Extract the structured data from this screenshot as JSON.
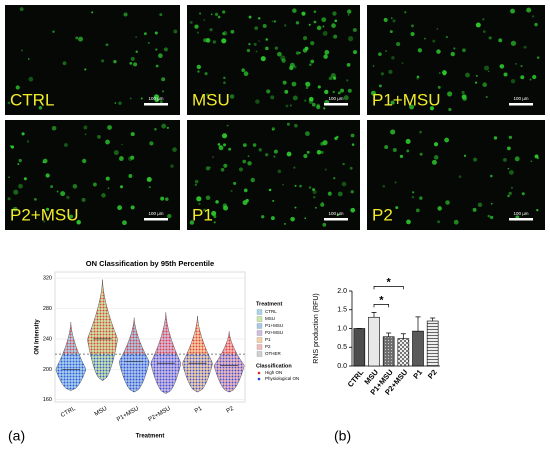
{
  "images": [
    {
      "label": "CTRL",
      "scale_bar": "100 µm"
    },
    {
      "label": "MSU",
      "scale_bar": "100 µm"
    },
    {
      "label": "P1+MSU",
      "scale_bar": "100 µm"
    },
    {
      "label": "P2+MSU",
      "scale_bar": "100 µm"
    },
    {
      "label": "P1",
      "scale_bar": "100 µm"
    },
    {
      "label": "P2",
      "scale_bar": "100 µm"
    }
  ],
  "panel_labels": [
    "(a)",
    "(b)"
  ],
  "chart_data": [
    {
      "type": "violin",
      "title": "ON Classification by 95th Percentile",
      "x_label": "Treatment",
      "y_label": "ON Intensity",
      "categories": [
        "CTRL",
        "MSU",
        "P1+MSU",
        "P2+MSU",
        "P1",
        "P2"
      ],
      "min": [
        172,
        185,
        170,
        168,
        170,
        170
      ],
      "median": [
        200,
        240,
        210,
        208,
        208,
        205
      ],
      "max": [
        262,
        318,
        268,
        275,
        270,
        250
      ],
      "colors": [
        "#a8d4ec",
        "#c9e8a8",
        "#a9c8e8",
        "#d2bde0",
        "#f6d2a6",
        "#f4bcbc"
      ],
      "threshold": 220,
      "ylim": [
        157,
        328
      ],
      "yticks": [
        160,
        200,
        240,
        280,
        320
      ],
      "grid": true,
      "legend": {
        "title": "Treatment",
        "entries": [
          "CTRL",
          "MSU",
          "P1+MSU",
          "P2+MSU",
          "P1",
          "P2",
          "OTHER"
        ],
        "colors": [
          "#a8d4ec",
          "#c9e8a8",
          "#a9c8e8",
          "#d2bde0",
          "#f6d2a6",
          "#f4bcbc",
          "#d0d0d0"
        ]
      },
      "classification": {
        "title": "Classification",
        "entries": [
          "High ON",
          "Physiological ON"
        ],
        "colors": [
          "#e0282c",
          "#2340d8"
        ]
      }
    },
    {
      "type": "bar",
      "y_label": "RNS production (RFU)",
      "categories": [
        "CTRL",
        "MSU",
        "P1+MSU",
        "P2+MSU",
        "P1",
        "P2"
      ],
      "values": [
        1.0,
        1.3,
        0.78,
        0.73,
        0.93,
        1.2
      ],
      "errors": [
        0,
        0.13,
        0.1,
        0.13,
        0.38,
        0.08
      ],
      "colors": [
        "#4d4d4d",
        "#e8e8e8",
        "#6e6e6e",
        "#c4c4c4",
        "#5a5a5a",
        "#dcdcdc"
      ],
      "patterns": [
        "solid",
        "solid",
        "dots",
        "checker",
        "solid",
        "hstripes"
      ],
      "ylim": [
        0,
        2.0
      ],
      "yticks": [
        {
          "value": 0,
          "label": "0.0"
        },
        {
          "value": 0.5,
          "label": "0.5"
        },
        {
          "value": 1,
          "label": "1.0"
        },
        {
          "value": 1.5,
          "label": "1.5"
        },
        {
          "value": 2,
          "label": "2.0"
        }
      ],
      "annotations": [
        {
          "text": "*",
          "between": [
            "MSU",
            "P1+MSU"
          ]
        },
        {
          "text": "*",
          "between": [
            "MSU",
            "P2+MSU"
          ]
        }
      ]
    }
  ]
}
